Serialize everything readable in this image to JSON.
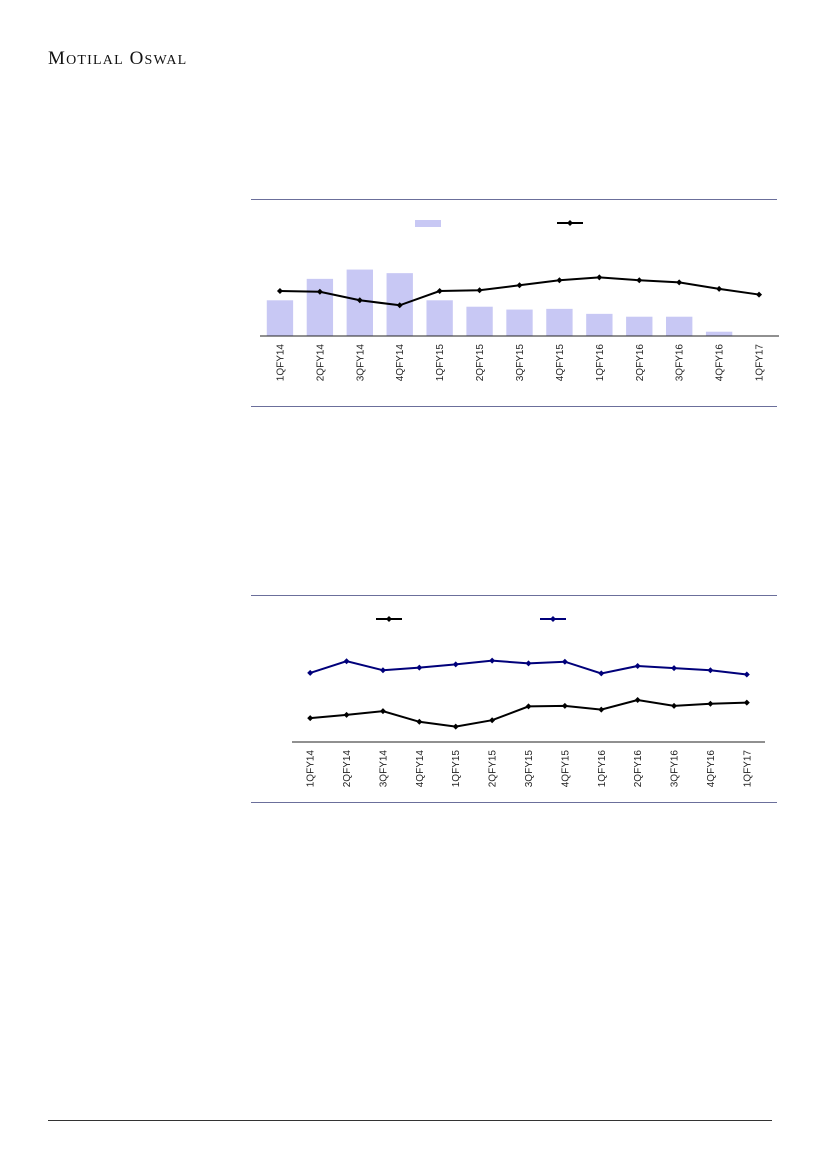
{
  "header": {
    "brand_name": "Motilal Oswal"
  },
  "charts": [
    {
      "type": "bar+line",
      "categories": [
        "1QFY14",
        "2QFY14",
        "3QFY14",
        "4QFY14",
        "1QFY15",
        "2QFY15",
        "3QFY15",
        "4QFY15",
        "1QFY16",
        "2QFY16",
        "3QFY16",
        "4QFY16",
        "1QFY17"
      ],
      "series": [
        {
          "kind": "bar",
          "color": "#c8c8f4",
          "values": [
            5.0,
            8.0,
            9.3,
            8.8,
            5.0,
            4.1,
            3.7,
            3.8,
            3.1,
            2.7,
            2.7,
            0.6,
            0.0
          ]
        },
        {
          "kind": "line",
          "color": "#000000",
          "marker": "diamond",
          "values": [
            6.3,
            6.2,
            5.0,
            4.3,
            6.3,
            6.4,
            7.1,
            7.8,
            8.2,
            7.8,
            7.5,
            6.6,
            5.8
          ]
        }
      ],
      "ylim": [
        0,
        14
      ],
      "legend_position": "top-center",
      "grid": false
    },
    {
      "type": "line",
      "categories": [
        "1QFY14",
        "2QFY14",
        "3QFY14",
        "4QFY14",
        "1QFY15",
        "2QFY15",
        "3QFY15",
        "4QFY15",
        "1QFY16",
        "2QFY16",
        "3QFY16",
        "4QFY16",
        "1QFY17"
      ],
      "series": [
        {
          "kind": "line",
          "color": "#000000",
          "marker": "diamond",
          "values": [
            2.5,
            3.1,
            3.8,
            1.8,
            0.9,
            2.1,
            4.7,
            4.8,
            4.1,
            5.9,
            4.8,
            5.2,
            5.4
          ]
        },
        {
          "kind": "line",
          "color": "#00007a",
          "marker": "diamond",
          "values": [
            11.0,
            13.2,
            11.5,
            12.0,
            12.6,
            13.3,
            12.8,
            13.1,
            10.9,
            12.3,
            11.9,
            11.5,
            10.7
          ]
        }
      ],
      "ylim": [
        -2,
        17
      ],
      "legend_position": "top-center",
      "grid": false
    }
  ]
}
